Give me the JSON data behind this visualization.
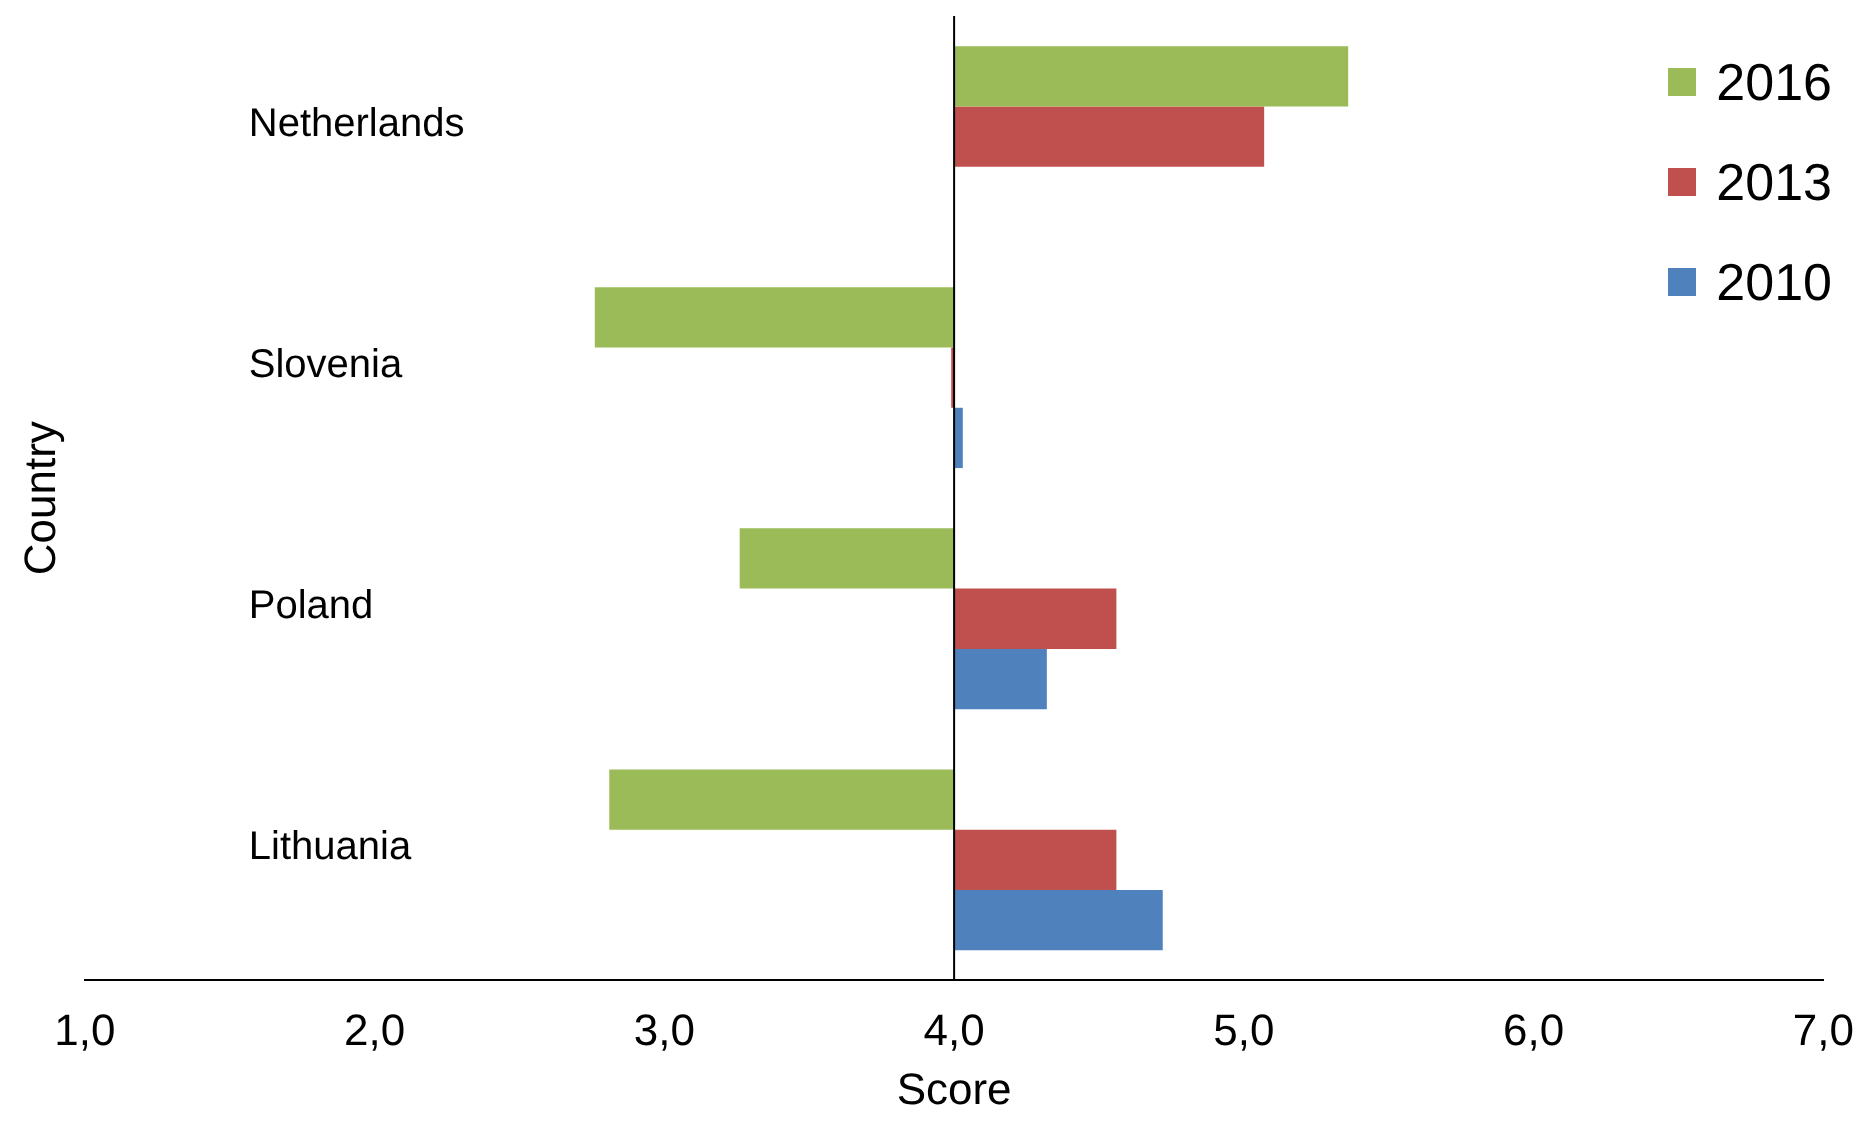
{
  "chart_data": {
    "type": "bar",
    "orientation": "horizontal",
    "xlabel": "Score",
    "ylabel": "Country",
    "categories": [
      "Netherlands",
      "Slovenia",
      "Poland",
      "Lithuania"
    ],
    "series": [
      {
        "name": "2016",
        "color": "#9bbb59",
        "base": [
          4,
          4,
          4,
          4
        ],
        "values": [
          1.36,
          -1.24,
          -0.74,
          -1.19
        ]
      },
      {
        "name": "2013",
        "color": "#c0504d",
        "base": [
          4,
          4,
          4,
          4
        ],
        "values": [
          1.07,
          -0.01,
          0.56,
          0.56
        ]
      },
      {
        "name": "2010",
        "color": "#4f81bd",
        "base": [
          null,
          4,
          4,
          4
        ],
        "values": [
          null,
          0.03,
          0.32,
          0.72
        ]
      }
    ],
    "xlim": [
      1,
      7
    ],
    "xticks": [
      {
        "value": 1,
        "label": "1,0"
      },
      {
        "value": 2,
        "label": "2,0"
      },
      {
        "value": 3,
        "label": "3,0"
      },
      {
        "value": 4,
        "label": "4,0"
      },
      {
        "value": 5,
        "label": "5,0"
      },
      {
        "value": 6,
        "label": "6,0"
      },
      {
        "value": 7,
        "label": "7,0"
      }
    ],
    "ref_lines": [
      {
        "axis": "x",
        "value": 4,
        "color": "#000000"
      }
    ],
    "legend": "top right"
  }
}
